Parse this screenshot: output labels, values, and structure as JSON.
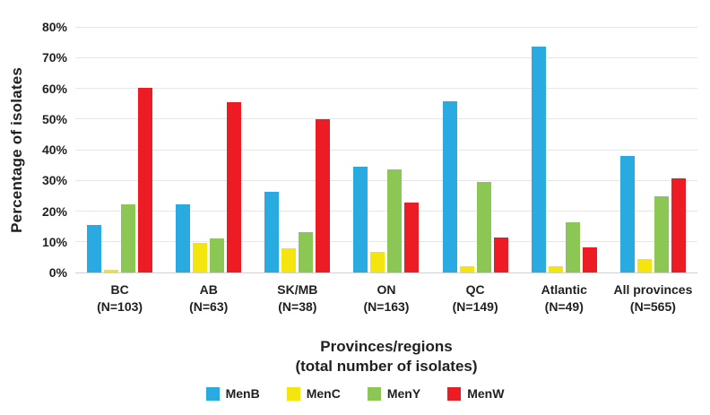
{
  "chart_data": {
    "type": "bar",
    "ylabel": "Percentage of isolates",
    "xlabel_line1": "Provinces/regions",
    "xlabel_line2": "(total number of isolates)",
    "ylim": [
      0,
      80
    ],
    "ytick_step": 10,
    "ytick_suffix": "%",
    "grid": "horizontal",
    "legend_position": "bottom",
    "categories": [
      "BC",
      "AB",
      "SK/MB",
      "ON",
      "QC",
      "Atlantic",
      "All provinces"
    ],
    "category_sublabels": [
      "(N=103)",
      "(N=63)",
      "(N=38)",
      "(N=163)",
      "(N=149)",
      "(N=49)",
      "(N=565)"
    ],
    "series": [
      {
        "name": "MenB",
        "color": "#29ABE2",
        "values": [
          15.5,
          22.2,
          26.3,
          34.4,
          55.7,
          73.5,
          38.1
        ]
      },
      {
        "name": "MenC",
        "color": "#F4E511",
        "values": [
          1.0,
          9.5,
          7.9,
          6.7,
          2.0,
          2.0,
          4.4
        ]
      },
      {
        "name": "MenY",
        "color": "#8CC654",
        "values": [
          22.3,
          11.1,
          13.2,
          33.7,
          29.5,
          16.3,
          24.9
        ]
      },
      {
        "name": "MenW",
        "color": "#ED1C24",
        "values": [
          60.2,
          55.6,
          50.0,
          22.7,
          11.4,
          8.2,
          30.8
        ]
      }
    ]
  },
  "colors": {
    "gridline": "#E6E6E6",
    "baseline": "#CFCFCF",
    "text": "#231F20"
  }
}
